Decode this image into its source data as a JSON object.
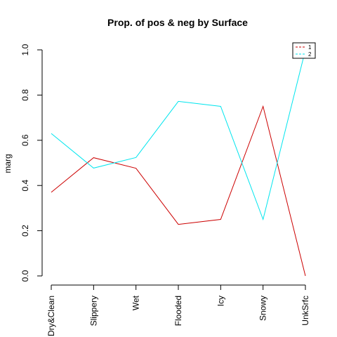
{
  "chart_data": {
    "type": "line",
    "title": "Prop. of pos & neg by Surface",
    "xlabel": "",
    "ylabel": "marg",
    "categories": [
      "Dry&Clean",
      "Slippery",
      "Wet",
      "Flooded",
      "Icy",
      "Snowy",
      "UnkSrfc"
    ],
    "ylim": [
      0,
      1
    ],
    "y_ticks": [
      0.0,
      0.2,
      0.4,
      0.6,
      0.8,
      1.0
    ],
    "y_tick_labels": [
      "0.0",
      "0.2",
      "0.4",
      "0.6",
      "0.8",
      "1.0"
    ],
    "grid": false,
    "legend_position": "top-right",
    "series": [
      {
        "name": "1",
        "color": "#cc0000",
        "line_style": "dashed in legend",
        "values": [
          0.37,
          0.523,
          0.476,
          0.228,
          0.25,
          0.75,
          0.0
        ]
      },
      {
        "name": "2",
        "color": "#00e5ee",
        "line_style": "dashed in legend",
        "values": [
          0.63,
          0.477,
          0.524,
          0.772,
          0.75,
          0.25,
          1.0
        ]
      }
    ]
  }
}
